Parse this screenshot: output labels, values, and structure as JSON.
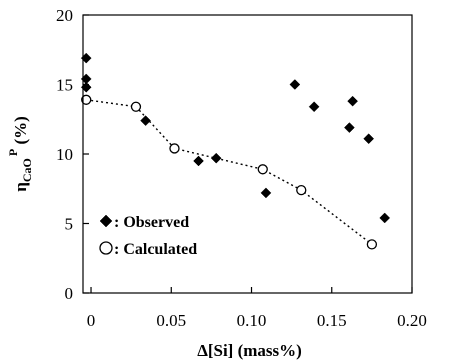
{
  "chart_data": {
    "type": "scatter",
    "xlabel": "Δ[Si] (mass%)",
    "ylabel": {
      "base": "η",
      "sub": "CaO",
      "sup": "P",
      "unit": " (%)"
    },
    "xlim": [
      -0.005,
      0.2
    ],
    "ylim": [
      0,
      20
    ],
    "xticks": [
      0,
      0.05,
      0.1,
      0.15,
      0.2
    ],
    "xtick_labels": [
      "0",
      "0.05",
      "0.10",
      "0.15",
      "0.20"
    ],
    "yticks": [
      0,
      5,
      10,
      15,
      20
    ],
    "ytick_labels": [
      "0",
      "5",
      "10",
      "15",
      "20"
    ],
    "grid": false,
    "legend_position": "bottom-left",
    "series": [
      {
        "name": ": Observed",
        "marker": "filled-diamond",
        "color": "#000000",
        "line": "none",
        "points": [
          {
            "x": -0.003,
            "y": 16.9
          },
          {
            "x": -0.003,
            "y": 15.4
          },
          {
            "x": -0.003,
            "y": 14.8
          },
          {
            "x": 0.034,
            "y": 12.4
          },
          {
            "x": 0.067,
            "y": 9.5
          },
          {
            "x": 0.078,
            "y": 9.7
          },
          {
            "x": 0.109,
            "y": 7.2
          },
          {
            "x": 0.127,
            "y": 15.0
          },
          {
            "x": 0.139,
            "y": 13.4
          },
          {
            "x": 0.161,
            "y": 11.9
          },
          {
            "x": 0.163,
            "y": 13.8
          },
          {
            "x": 0.173,
            "y": 11.1
          },
          {
            "x": 0.183,
            "y": 5.4
          }
        ]
      },
      {
        "name": ": Calculated",
        "marker": "open-circle",
        "color": "#000000",
        "line": "dotted",
        "points": [
          {
            "x": -0.003,
            "y": 13.9
          },
          {
            "x": 0.028,
            "y": 13.4
          },
          {
            "x": 0.052,
            "y": 10.4
          },
          {
            "x": 0.107,
            "y": 8.9
          },
          {
            "x": 0.131,
            "y": 7.4
          },
          {
            "x": 0.175,
            "y": 3.5
          }
        ]
      }
    ]
  }
}
